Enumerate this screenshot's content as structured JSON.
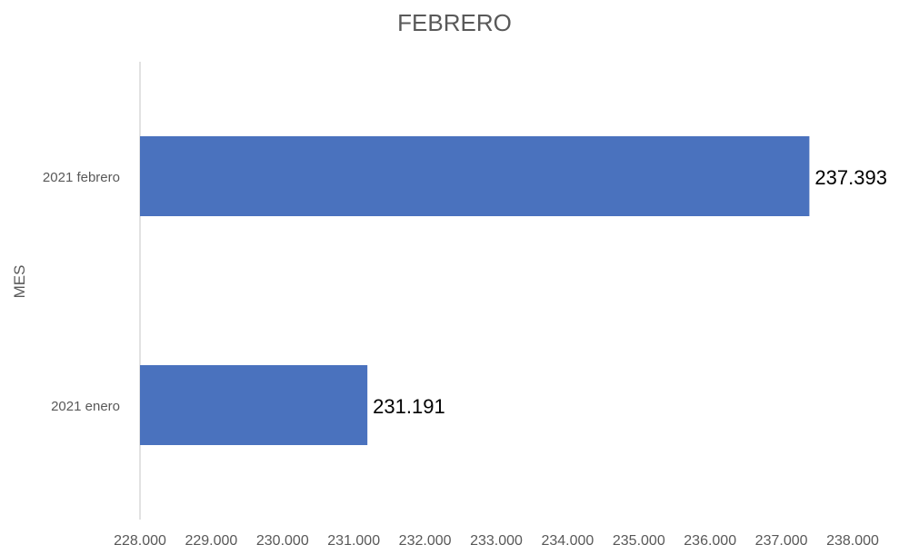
{
  "chart_data": {
    "type": "bar",
    "orientation": "horizontal",
    "title": "FEBRERO",
    "xlabel": "",
    "ylabel": "MES",
    "categories": [
      "2021 febrero",
      "2021 enero"
    ],
    "values": [
      237393,
      231191
    ],
    "data_labels": [
      "237.393",
      "231.191"
    ],
    "xlim": [
      228000,
      238000
    ],
    "x_ticks": [
      228000,
      229000,
      230000,
      231000,
      232000,
      233000,
      234000,
      235000,
      236000,
      237000,
      238000
    ],
    "x_tick_labels": [
      "228.000",
      "229.000",
      "230.000",
      "231.000",
      "232.000",
      "233.000",
      "234.000",
      "235.000",
      "236.000",
      "237.000",
      "238.000"
    ],
    "grid": false,
    "bar_color": "#4A72BE",
    "axis_color": "#D9D9D9"
  }
}
